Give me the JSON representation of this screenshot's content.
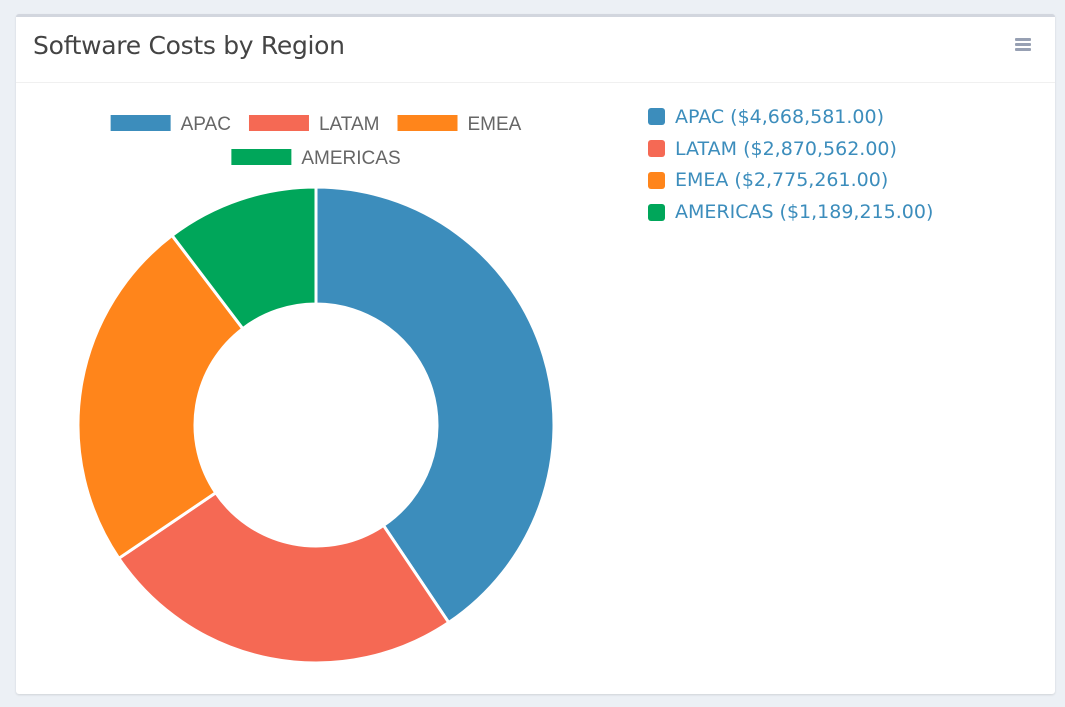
{
  "card": {
    "title": "Software Costs by Region",
    "menu_icon": "hamburger-menu-icon"
  },
  "legend_list": [
    {
      "label": "APAC",
      "amount": "($4,668,581.00)",
      "color": "#3c8dbc"
    },
    {
      "label": "LATAM",
      "amount": "($2,870,562.00)",
      "color": "#f56954"
    },
    {
      "label": "EMEA",
      "amount": "($2,775,261.00)",
      "color": "#ff851b"
    },
    {
      "label": "AMERICAS",
      "amount": "($1,189,215.00)",
      "color": "#00a65a"
    }
  ],
  "chart_data": {
    "type": "pie",
    "variant": "doughnut",
    "categories": [
      "APAC",
      "LATAM",
      "EMEA",
      "AMERICAS"
    ],
    "values": [
      4668581,
      2870562,
      2775261,
      1189215
    ],
    "colors": [
      "#3c8dbc",
      "#f56954",
      "#ff851b",
      "#00a65a"
    ],
    "legend": "top",
    "title": ""
  }
}
